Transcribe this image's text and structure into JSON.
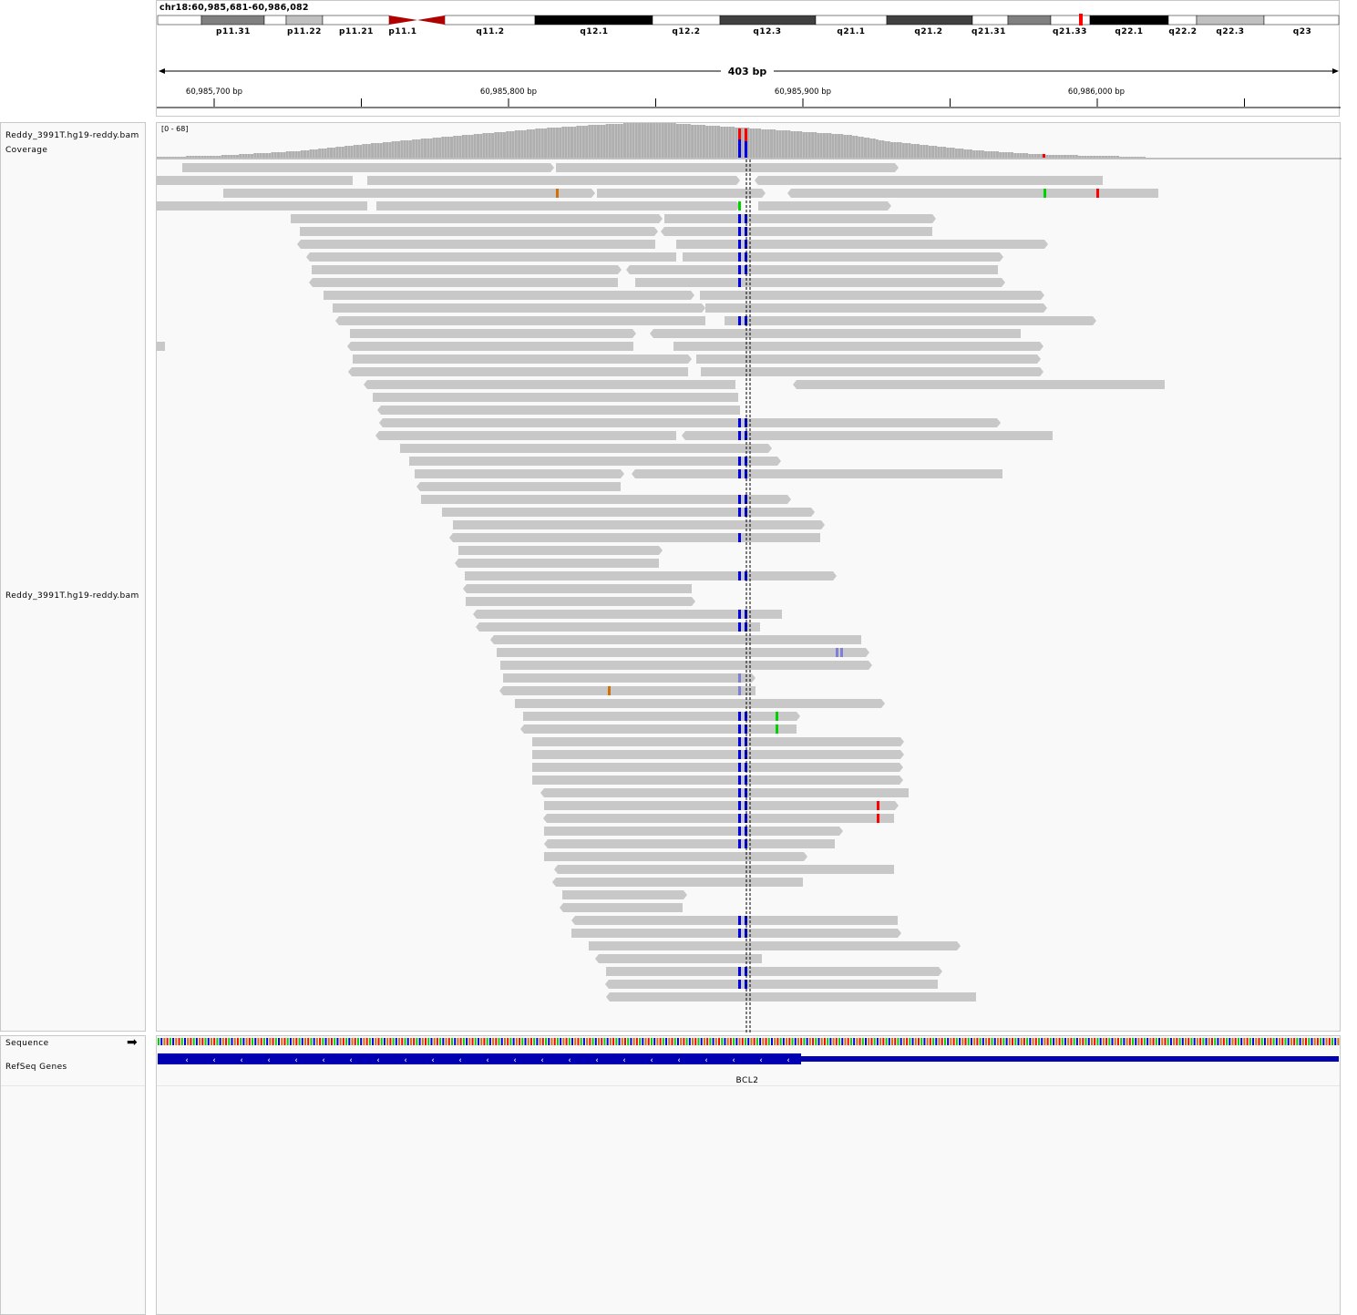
{
  "locus": "chr18:60,985,681-60,986,082",
  "ideogram": {
    "bands": [
      {
        "name": "p11.31",
        "stain": "gpos50"
      },
      {
        "name": "p11.22",
        "stain": "gpos25"
      },
      {
        "name": "p11.21",
        "stain": "gneg"
      },
      {
        "name": "p11.1",
        "stain": "acen"
      },
      {
        "name": "q11.2",
        "stain": "gneg"
      },
      {
        "name": "q12.1",
        "stain": "gpos100"
      },
      {
        "name": "q12.2",
        "stain": "gneg"
      },
      {
        "name": "q12.3",
        "stain": "gpos75"
      },
      {
        "name": "q21.1",
        "stain": "gneg"
      },
      {
        "name": "q21.2",
        "stain": "gpos75"
      },
      {
        "name": "q21.31",
        "stain": "gneg"
      },
      {
        "name": "q21.33",
        "stain": "gneg"
      },
      {
        "name": "q22.1",
        "stain": "gpos100"
      },
      {
        "name": "q22.2",
        "stain": "gneg"
      },
      {
        "name": "q22.3",
        "stain": "gpos25"
      },
      {
        "name": "q23",
        "stain": "gneg"
      }
    ]
  },
  "ruler": {
    "span_label": "403 bp",
    "ticks": [
      "60,985,700 bp",
      "60,985,800 bp",
      "60,985,900 bp",
      "60,986,000 bp"
    ]
  },
  "tracks": {
    "coverage_name": "Reddy_3991T.hg19-reddy.bam Coverage",
    "coverage_range": "[0 - 68]",
    "alignment_name": "Reddy_3991T.hg19-reddy.bam",
    "sequence_name": "Sequence",
    "genes_name": "RefSeq Genes"
  },
  "gene": {
    "name": "BCL2",
    "strand": "-"
  },
  "colors": {
    "read": "#c8c8c8",
    "coverage": "#afafaf",
    "mismatch_A": "#00d200",
    "mismatch_C": "#0000e6",
    "mismatch_G": "#d17105",
    "mismatch_T": "#ff0000",
    "gene": "#0000b2",
    "chrom_marker": "#ff0000"
  },
  "icons": {
    "sequence_strand": "right-arrow-icon"
  }
}
